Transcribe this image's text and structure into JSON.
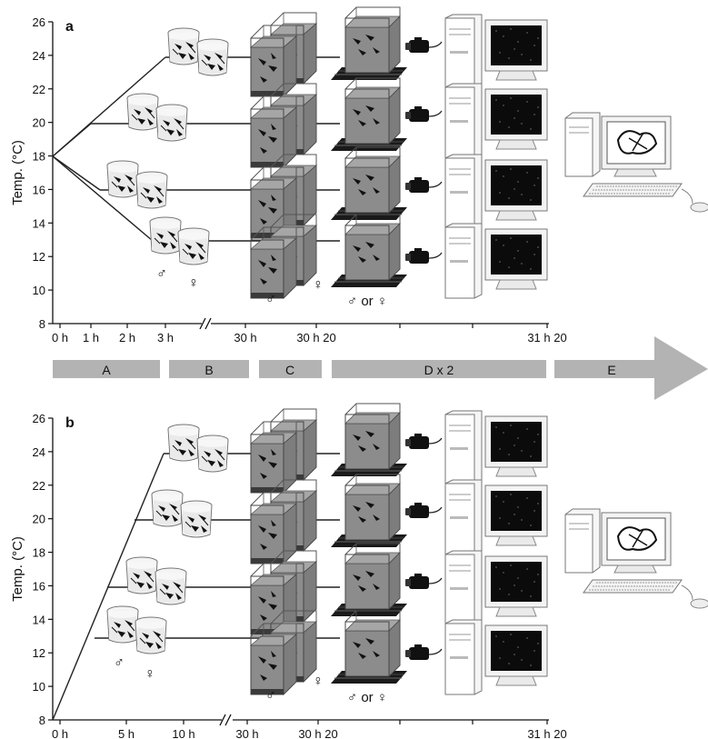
{
  "panels": [
    {
      "label": "a",
      "ylabel": "Temp. (°C)",
      "yticks": [
        "8",
        "10",
        "12",
        "14",
        "16",
        "18",
        "20",
        "22",
        "24",
        "26"
      ],
      "xticks_left": [
        "0 h",
        "1 h",
        "2 h",
        "3 h"
      ],
      "xticks_right": [
        "30 h",
        "30 h 20",
        "31 h 20"
      ],
      "male_symbol": "♂",
      "female_symbol": "♀",
      "either_label": "♂ or ♀",
      "start_temp": 18,
      "target_temps": [
        24,
        20,
        16,
        13
      ]
    },
    {
      "label": "b",
      "ylabel": "Temp. (°C)",
      "yticks": [
        "8",
        "10",
        "12",
        "14",
        "16",
        "18",
        "20",
        "22",
        "24",
        "26"
      ],
      "xticks_left": [
        "0 h",
        "5 h",
        "10 h"
      ],
      "xticks_right": [
        "30 h",
        "30 h 20",
        "31 h 20"
      ],
      "male_symbol": "♂",
      "female_symbol": "♀",
      "either_label": "♂ or ♀",
      "start_temp": 8,
      "target_temps": [
        24,
        20,
        16,
        13
      ]
    }
  ],
  "stages": [
    "A",
    "B",
    "C",
    "D x 2",
    "E"
  ],
  "colors": {
    "stage_bar": "#b3b3b3",
    "tank_water": "#8c8c8c",
    "tank_glass": "#d9d9d9",
    "screen": "#0b0b0b",
    "platform": "#1a1a1a"
  }
}
